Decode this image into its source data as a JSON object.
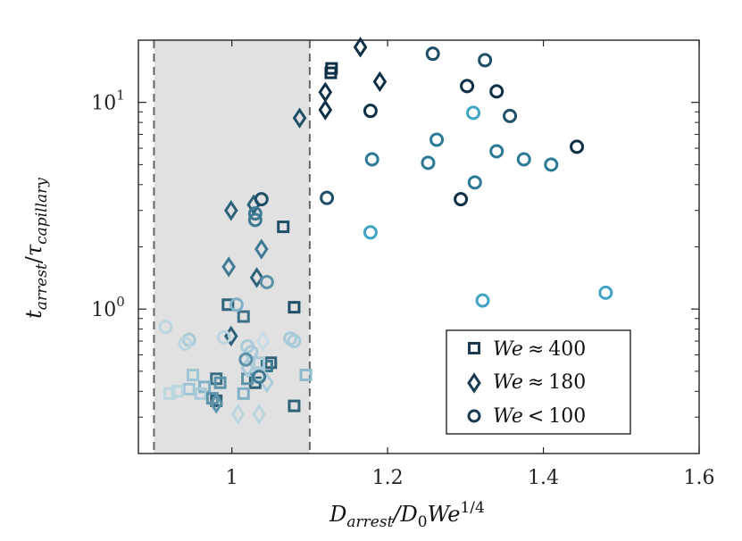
{
  "chart_data": {
    "type": "scatter",
    "xlabel": "D_arrest/D_0 We^1/4",
    "ylabel": "t_arrest/τ_capillary",
    "xlim": [
      0.88,
      1.6
    ],
    "ylim": [
      0.2,
      20
    ],
    "yscale": "log",
    "grid": false,
    "legend_position": "bottom-right",
    "xticks": [
      "1",
      "1.2",
      "1.4",
      "1.6"
    ],
    "yticks": [
      "10^0",
      "10^1"
    ],
    "shaded_region": {
      "x": [
        0.9,
        1.1
      ],
      "color": "#e1e1e1",
      "boundary_style": "dashed"
    },
    "series": [
      {
        "name": "We ≈ 400",
        "marker": "square",
        "legend_label": {
          "prefix": "We",
          "operator": "≈",
          "value": "400"
        },
        "points": [
          {
            "x": 1.128,
            "y": 14.6,
            "c": "#0d3047"
          },
          {
            "x": 1.127,
            "y": 13.9,
            "c": "#0d3047"
          },
          {
            "x": 1.066,
            "y": 2.5,
            "c": "#1f4f68"
          },
          {
            "x": 0.995,
            "y": 1.05,
            "c": "#2d6278"
          },
          {
            "x": 1.08,
            "y": 1.02,
            "c": "#1f4f68"
          },
          {
            "x": 1.015,
            "y": 0.92,
            "c": "#3a6f86"
          },
          {
            "x": 1.05,
            "y": 0.55,
            "c": "#2d6278"
          },
          {
            "x": 1.045,
            "y": 0.53,
            "c": "#3e7a93"
          },
          {
            "x": 1.03,
            "y": 0.44,
            "c": "#2d6278"
          },
          {
            "x": 1.02,
            "y": 0.46,
            "c": "#5d93a8"
          },
          {
            "x": 0.98,
            "y": 0.46,
            "c": "#3a6f86"
          },
          {
            "x": 0.985,
            "y": 0.44,
            "c": "#5d93a8"
          },
          {
            "x": 0.95,
            "y": 0.48,
            "c": "#9fc6d6"
          },
          {
            "x": 0.945,
            "y": 0.41,
            "c": "#9fc6d6"
          },
          {
            "x": 0.965,
            "y": 0.42,
            "c": "#7fb0c6"
          },
          {
            "x": 0.98,
            "y": 0.36,
            "c": "#2d6278"
          },
          {
            "x": 1.015,
            "y": 0.39,
            "c": "#7fb0c6"
          },
          {
            "x": 1.035,
            "y": 0.55,
            "c": "#a9cad8"
          },
          {
            "x": 1.035,
            "y": 0.48,
            "c": "#a9cad8"
          },
          {
            "x": 1.095,
            "y": 0.48,
            "c": "#8dbbcd"
          },
          {
            "x": 1.08,
            "y": 0.34,
            "c": "#2d6278"
          },
          {
            "x": 0.93,
            "y": 0.4,
            "c": "#bcd6e0"
          },
          {
            "x": 0.92,
            "y": 0.39,
            "c": "#bcd6e0"
          },
          {
            "x": 0.96,
            "y": 0.39,
            "c": "#a9cad8"
          },
          {
            "x": 0.975,
            "y": 0.37,
            "c": "#5d93a8"
          }
        ]
      },
      {
        "name": "We ≈ 180",
        "marker": "diamond",
        "legend_label": {
          "prefix": "We",
          "operator": "≈",
          "value": "180"
        },
        "points": [
          {
            "x": 1.165,
            "y": 18.5,
            "c": "#0d3047"
          },
          {
            "x": 1.19,
            "y": 12.6,
            "c": "#0d3047"
          },
          {
            "x": 1.12,
            "y": 11.2,
            "c": "#0d3047"
          },
          {
            "x": 1.12,
            "y": 9.2,
            "c": "#0d3047"
          },
          {
            "x": 1.087,
            "y": 8.4,
            "c": "#1f4f68"
          },
          {
            "x": 0.999,
            "y": 3.0,
            "c": "#2d6278"
          },
          {
            "x": 1.028,
            "y": 3.2,
            "c": "#2d6278"
          },
          {
            "x": 1.038,
            "y": 1.95,
            "c": "#3e7a93"
          },
          {
            "x": 0.996,
            "y": 1.6,
            "c": "#3e7a93"
          },
          {
            "x": 1.032,
            "y": 1.42,
            "c": "#2d6278"
          },
          {
            "x": 0.999,
            "y": 0.74,
            "c": "#2d6278"
          },
          {
            "x": 1.04,
            "y": 0.7,
            "c": "#c7dce5"
          },
          {
            "x": 1.02,
            "y": 0.52,
            "c": "#a9cad8"
          },
          {
            "x": 1.045,
            "y": 0.44,
            "c": "#a9cad8"
          },
          {
            "x": 1.008,
            "y": 0.31,
            "c": "#bcd6e0"
          },
          {
            "x": 1.035,
            "y": 0.31,
            "c": "#bcd6e0"
          },
          {
            "x": 0.98,
            "y": 0.35,
            "c": "#5d93a8"
          }
        ]
      },
      {
        "name": "We < 100",
        "marker": "circle",
        "legend_label": {
          "prefix": "We",
          "operator": "<",
          "value": "100"
        },
        "points": [
          {
            "x": 1.258,
            "y": 17.2,
            "c": "#1f4f68"
          },
          {
            "x": 1.325,
            "y": 16.0,
            "c": "#1f4f68"
          },
          {
            "x": 1.302,
            "y": 12.0,
            "c": "#0d3047"
          },
          {
            "x": 1.34,
            "y": 11.3,
            "c": "#0d3047"
          },
          {
            "x": 1.178,
            "y": 9.1,
            "c": "#0d3047"
          },
          {
            "x": 1.31,
            "y": 8.9,
            "c": "#42a3c3"
          },
          {
            "x": 1.357,
            "y": 8.6,
            "c": "#1f4f68"
          },
          {
            "x": 1.263,
            "y": 6.6,
            "c": "#2d7a96"
          },
          {
            "x": 1.443,
            "y": 6.1,
            "c": "#0d3047"
          },
          {
            "x": 1.34,
            "y": 5.8,
            "c": "#2d7a96"
          },
          {
            "x": 1.375,
            "y": 5.3,
            "c": "#2d7a96"
          },
          {
            "x": 1.18,
            "y": 5.3,
            "c": "#2d7a96"
          },
          {
            "x": 1.252,
            "y": 5.1,
            "c": "#2d7a96"
          },
          {
            "x": 1.41,
            "y": 5.0,
            "c": "#2d7a96"
          },
          {
            "x": 1.312,
            "y": 4.1,
            "c": "#2d7a96"
          },
          {
            "x": 1.122,
            "y": 3.45,
            "c": "#1f4f68"
          },
          {
            "x": 1.294,
            "y": 3.4,
            "c": "#0d3047"
          },
          {
            "x": 1.038,
            "y": 3.4,
            "c": "#1f4f68"
          },
          {
            "x": 1.03,
            "y": 2.9,
            "c": "#3e7a93"
          },
          {
            "x": 1.03,
            "y": 2.7,
            "c": "#3e7a93"
          },
          {
            "x": 1.178,
            "y": 2.35,
            "c": "#42a3c3"
          },
          {
            "x": 1.045,
            "y": 1.35,
            "c": "#5d93a8"
          },
          {
            "x": 1.48,
            "y": 1.2,
            "c": "#42a3c3"
          },
          {
            "x": 1.322,
            "y": 1.1,
            "c": "#42a3c3"
          },
          {
            "x": 1.006,
            "y": 1.05,
            "c": "#7fb0c6"
          },
          {
            "x": 1.075,
            "y": 0.72,
            "c": "#a9cad8"
          },
          {
            "x": 1.08,
            "y": 0.7,
            "c": "#a9cad8"
          },
          {
            "x": 0.915,
            "y": 0.82,
            "c": "#bcd6e0"
          },
          {
            "x": 0.945,
            "y": 0.71,
            "c": "#a9cad8"
          },
          {
            "x": 0.94,
            "y": 0.68,
            "c": "#bcd6e0"
          },
          {
            "x": 0.99,
            "y": 0.73,
            "c": "#bcd6e0"
          },
          {
            "x": 1.02,
            "y": 0.66,
            "c": "#a9cad8"
          },
          {
            "x": 1.025,
            "y": 0.62,
            "c": "#a9cad8"
          },
          {
            "x": 1.018,
            "y": 0.57,
            "c": "#5d93a8"
          },
          {
            "x": 1.035,
            "y": 0.47,
            "c": "#3e7a93"
          }
        ]
      }
    ]
  }
}
